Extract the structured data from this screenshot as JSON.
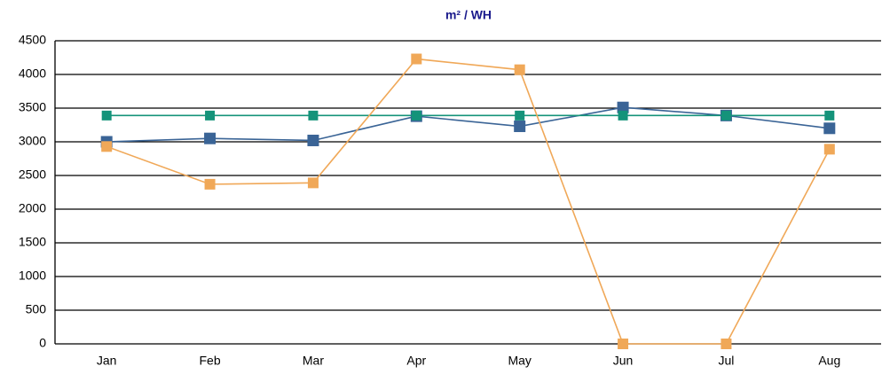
{
  "chart_data": {
    "type": "line",
    "title": "m² / WH",
    "categories": [
      "Jan",
      "Feb",
      "Mar",
      "Apr",
      "May",
      "Jun",
      "Jul",
      "Aug"
    ],
    "series": [
      {
        "color": "#3a6496",
        "values": [
          3000,
          3050,
          3020,
          3380,
          3230,
          3510,
          3390,
          3200
        ]
      },
      {
        "color": "#14937a",
        "values": [
          3390,
          3390,
          3390,
          3390,
          3390,
          3390,
          3390,
          3390
        ]
      },
      {
        "color": "#f0a858",
        "values": [
          2930,
          2370,
          2390,
          4230,
          4070,
          0,
          0,
          2890
        ]
      }
    ],
    "ylim": [
      0,
      4500
    ],
    "yticks": [
      0,
      500,
      1000,
      1500,
      2000,
      2500,
      3000,
      3500,
      4000,
      4500
    ],
    "grid": true
  }
}
